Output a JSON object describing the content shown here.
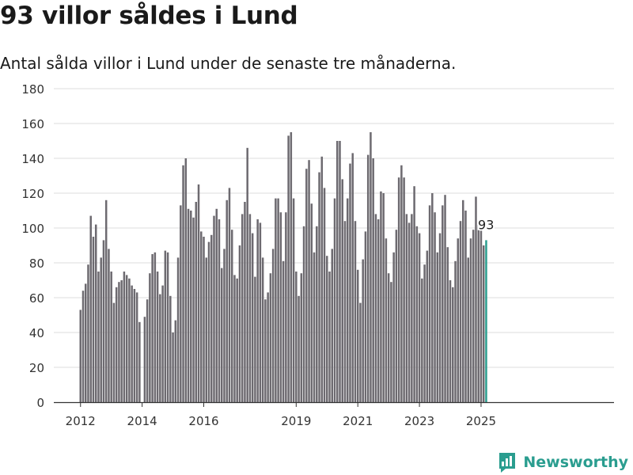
{
  "header": {
    "title": "93 villor såldes i Lund",
    "subtitle": "Antal sålda villor i Lund under de senaste tre månaderna."
  },
  "brand": {
    "name": "Newsworthy"
  },
  "colors": {
    "bar": "#6d6a70",
    "highlight": "#2a9d8f",
    "grid": "#dedede",
    "axis": "#333333"
  },
  "chart_data": {
    "type": "bar",
    "title": "93 villor såldes i Lund",
    "subtitle": "Antal sålda villor i Lund under de senaste tre månaderna.",
    "xlabel": "",
    "ylabel": "",
    "ylim": [
      0,
      180
    ],
    "y_ticks": [
      0,
      20,
      40,
      60,
      80,
      100,
      120,
      140,
      160,
      180
    ],
    "x_tick_labels": [
      "2012",
      "2014",
      "2016",
      "2019",
      "2021",
      "2023",
      "2025"
    ],
    "grid": "horizontal",
    "period": "rolling three months, monthly",
    "first_month": "2012-01",
    "last_month": "2025-03",
    "highlight_label": "93",
    "values": [
      53,
      64,
      68,
      79,
      107,
      95,
      102,
      75,
      83,
      93,
      116,
      88,
      75,
      57,
      66,
      69,
      70,
      75,
      73,
      71,
      67,
      65,
      63,
      46,
      0,
      49,
      59,
      74,
      85,
      86,
      75,
      62,
      67,
      87,
      86,
      61,
      40,
      47,
      83,
      113,
      136,
      140,
      111,
      110,
      106,
      115,
      125,
      98,
      95,
      83,
      92,
      96,
      107,
      111,
      105,
      77,
      88,
      116,
      123,
      99,
      73,
      71,
      90,
      108,
      115,
      146,
      108,
      97,
      72,
      105,
      103,
      83,
      59,
      63,
      74,
      88,
      117,
      117,
      109,
      81,
      109,
      153,
      155,
      117,
      75,
      61,
      74,
      101,
      134,
      139,
      114,
      86,
      101,
      132,
      141,
      123,
      84,
      75,
      88,
      117,
      150,
      150,
      128,
      104,
      117,
      137,
      143,
      104,
      76,
      57,
      82,
      98,
      142,
      155,
      140,
      108,
      105,
      121,
      120,
      94,
      74,
      69,
      86,
      99,
      129,
      136,
      129,
      108,
      103,
      108,
      124,
      101,
      97,
      71,
      79,
      87,
      113,
      120,
      109,
      86,
      97,
      113,
      119,
      89,
      70,
      66,
      81,
      94,
      104,
      116,
      110,
      83,
      94,
      99,
      118,
      103,
      99,
      90,
      93
    ]
  }
}
